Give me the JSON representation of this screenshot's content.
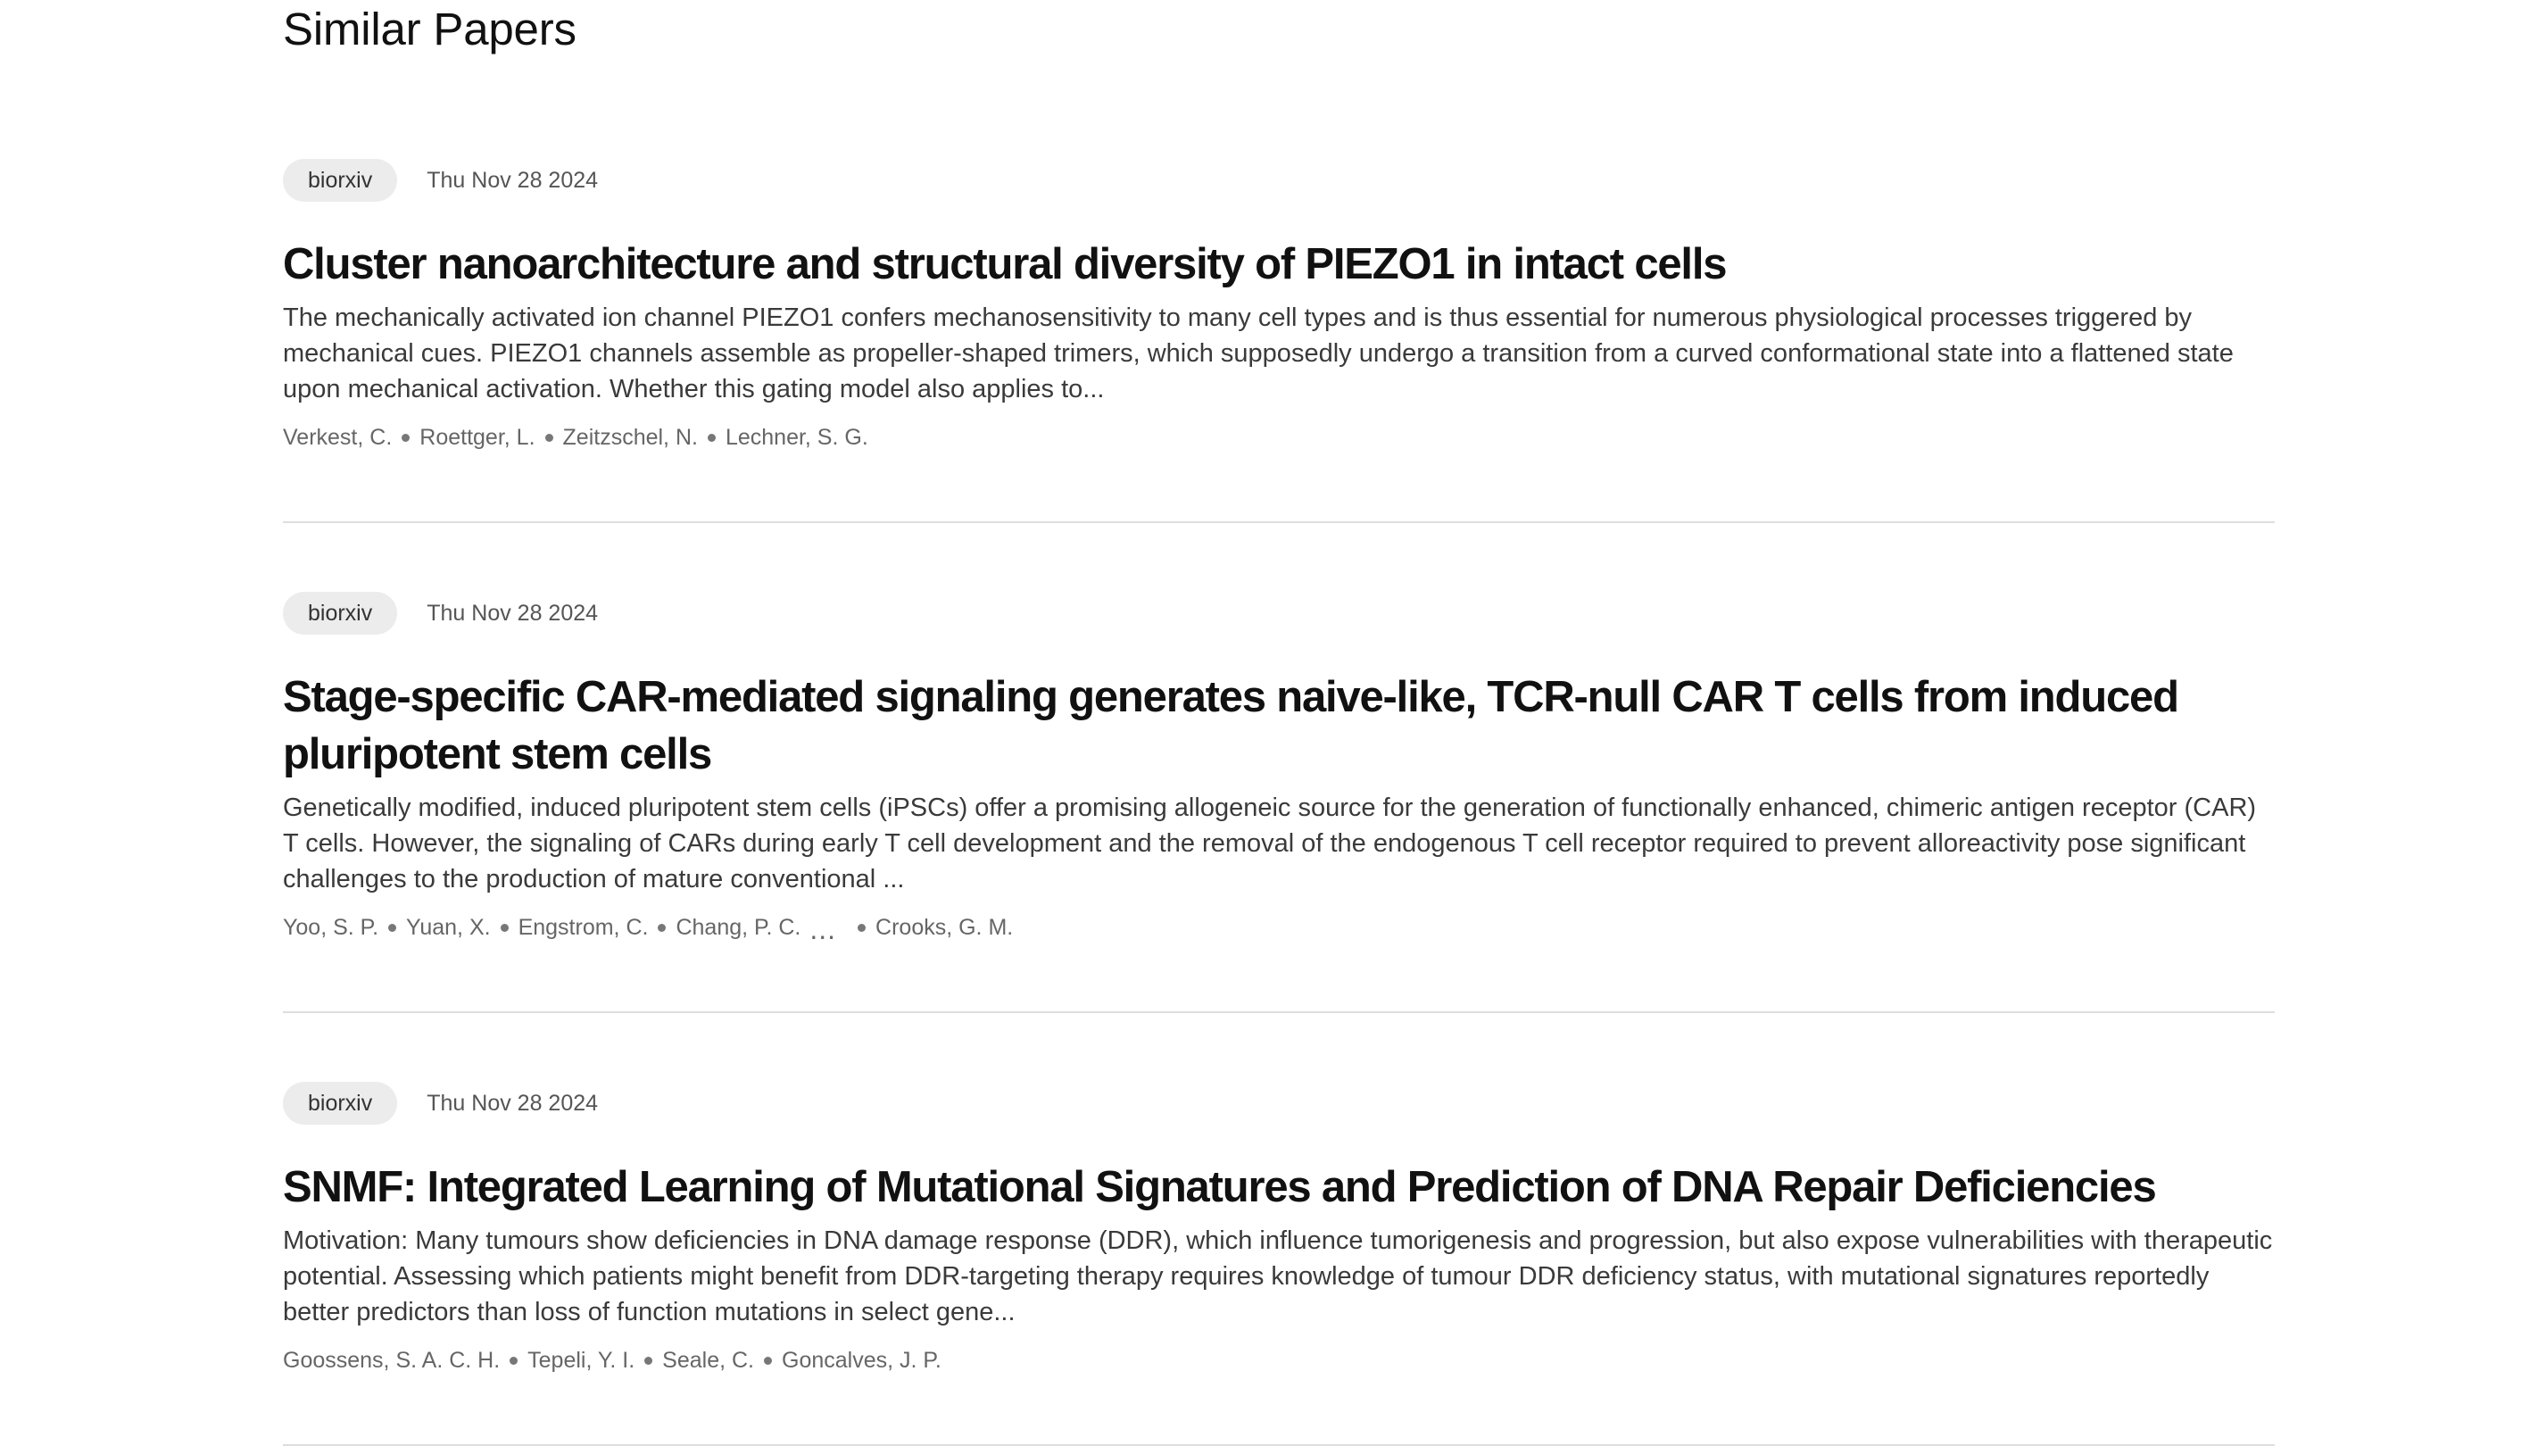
{
  "section": {
    "title": "Similar Papers"
  },
  "papers": [
    {
      "source": "biorxiv",
      "date": "Thu Nov 28 2024",
      "title": "Cluster nanoarchitecture and structural diversity of PIEZO1 in intact cells",
      "abstract": "The mechanically activated ion channel PIEZO1 confers mechanosensitivity to many cell types and is thus essential for numerous physiological processes triggered by mechanical cues. PIEZO1 channels assemble as propeller-shaped trimers, which supposedly undergo a transition from a curved conformational state into a flattened state upon mechanical activation. Whether this gating model also applies to...",
      "authors": [
        "Verkest, C.",
        "Roettger, L.",
        "Zeitzschel, N.",
        "Lechner, S. G."
      ]
    },
    {
      "source": "biorxiv",
      "date": "Thu Nov 28 2024",
      "title": "Stage-specific CAR-mediated signaling generates naive-like, TCR-null CAR T cells from induced pluripotent stem cells",
      "abstract": "Genetically modified, induced pluripotent stem cells (iPSCs) offer a promising allogeneic source for the generation of functionally enhanced, chimeric antigen receptor (CAR) T cells. However, the signaling of CARs during early T cell development and the removal of the endogenous T cell receptor required to prevent alloreactivity pose significant challenges to the production of mature conventional ...",
      "authors": [
        "Yoo, S. P.",
        "Yuan, X.",
        "Engstrom, C.",
        "Chang, P. C."
      ],
      "authors_ellipsis": "...",
      "last_author": "Crooks, G. M."
    },
    {
      "source": "biorxiv",
      "date": "Thu Nov 28 2024",
      "title": "SNMF: Integrated Learning of Mutational Signatures and Prediction of DNA Repair Deficiencies",
      "abstract": "Motivation: Many tumours show deficiencies in DNA damage response (DDR), which influence tumorigenesis and progression, but also expose vulnerabilities with therapeutic potential. Assessing which patients might benefit from DDR-targeting therapy requires knowledge of tumour DDR deficiency status, with mutational signatures reportedly better predictors than loss of function mutations in select gene...",
      "authors": [
        "Goossens, S. A. C. H.",
        "Tepeli, Y. I.",
        "Seale, C.",
        "Goncalves, J. P."
      ]
    }
  ]
}
